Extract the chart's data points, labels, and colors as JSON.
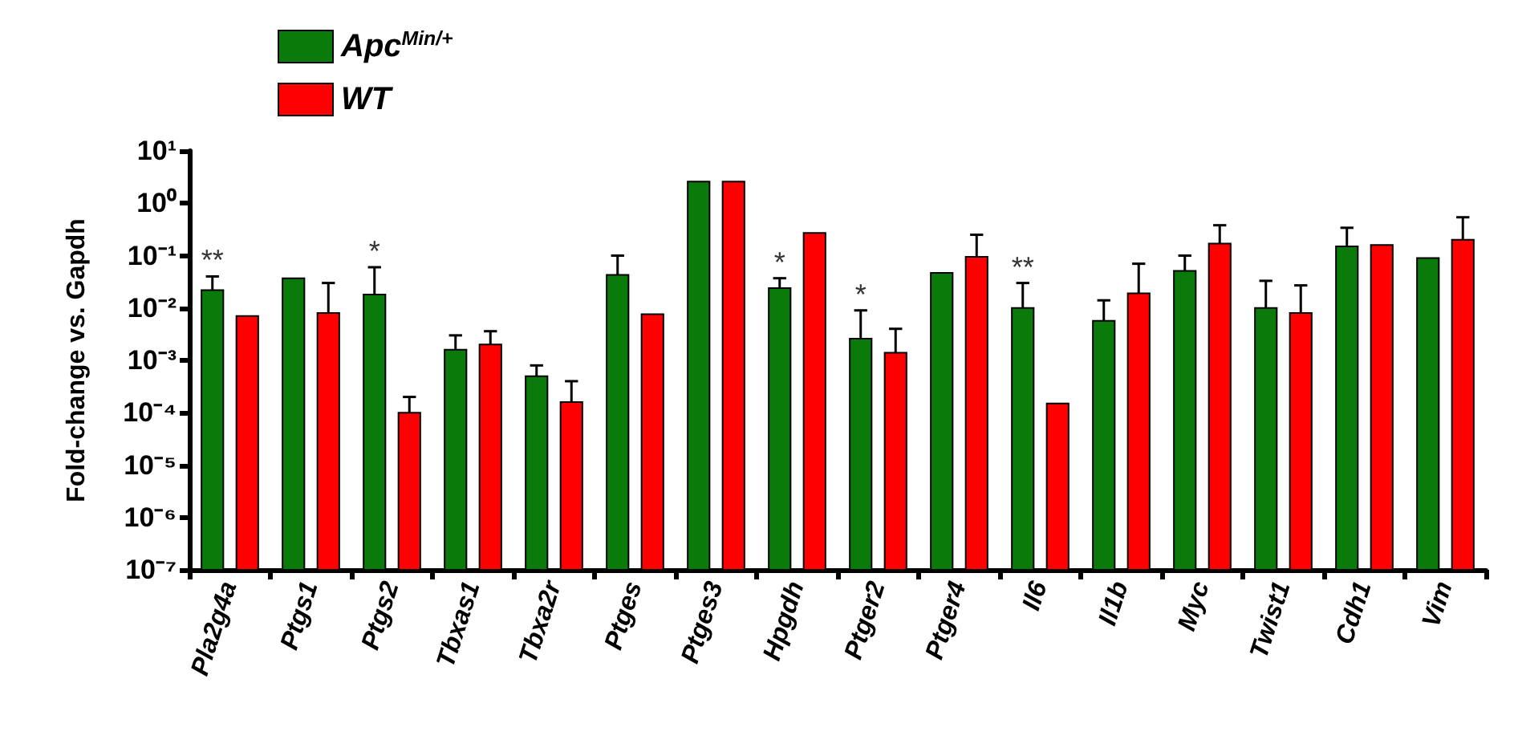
{
  "chart_data": {
    "type": "bar",
    "ylabel": "Fold-change vs. Gapdh",
    "categories": [
      "Pla2g4a",
      "Ptgs1",
      "Ptgs2",
      "Tbxas1",
      "Tbxa2r",
      "Ptges",
      "Ptges3",
      "Hpgdh",
      "Ptger2",
      "Ptger4",
      "Il6",
      "Il1b",
      "Myc",
      "Twist1",
      "Cdh1",
      "Vim"
    ],
    "series": [
      {
        "name": "Apc$^{Min/+}$",
        "color": "#0a7a0a",
        "values": [
          0.022,
          0.037,
          0.018,
          0.0016,
          0.0005,
          0.043,
          2.6,
          0.024,
          0.0026,
          0.047,
          0.01,
          0.0057,
          0.051,
          0.01,
          0.15,
          0.09
        ],
        "value_labels": [
          "**",
          null,
          "*",
          null,
          null,
          null,
          null,
          "*",
          "*",
          null,
          "**",
          null,
          null,
          null,
          null,
          null
        ],
        "errors": [
          [
            0.022,
            0.04
          ],
          null,
          [
            0.018,
            0.06
          ],
          [
            0.0016,
            0.003
          ],
          [
            0.0005,
            0.0008
          ],
          [
            0.043,
            0.1
          ],
          null,
          [
            0.024,
            0.037
          ],
          [
            0.0026,
            0.009
          ],
          null,
          [
            0.01,
            0.03
          ],
          [
            0.0057,
            0.014
          ],
          [
            0.051,
            0.1
          ],
          [
            0.01,
            0.033
          ],
          [
            0.15,
            0.34
          ],
          null
        ]
      },
      {
        "name": "WT",
        "color": "#ff0000",
        "values": [
          0.007,
          0.008,
          0.0001,
          0.002,
          0.00016,
          0.0076,
          2.6,
          0.27,
          0.0014,
          0.095,
          0.00015,
          0.019,
          0.17,
          0.008,
          0.16,
          0.2
        ],
        "errors": [
          null,
          [
            0.008,
            0.03
          ],
          [
            0.0001,
            0.0002
          ],
          [
            0.002,
            0.0036
          ],
          [
            0.00016,
            0.0004
          ],
          null,
          null,
          null,
          [
            0.0014,
            0.004
          ],
          [
            0.095,
            0.25
          ],
          null,
          [
            0.019,
            0.07
          ],
          [
            0.17,
            0.38
          ],
          [
            0.008,
            0.027
          ],
          null,
          [
            0.2,
            0.54
          ]
        ]
      }
    ],
    "log": true,
    "ylim": [
      1e-07,
      10
    ],
    "yticks": [
      {
        "value": 1e-07,
        "label": "10⁻⁷"
      },
      {
        "value": 1e-06,
        "label": "10⁻⁶"
      },
      {
        "value": 1e-05,
        "label": "10⁻⁵"
      },
      {
        "value": 0.0001,
        "label": "10⁻⁴"
      },
      {
        "value": 0.001,
        "label": "10⁻³"
      },
      {
        "value": 0.01,
        "label": "10⁻²"
      },
      {
        "value": 0.1,
        "label": "10⁻¹"
      },
      {
        "value": 1,
        "label": "10⁰"
      },
      {
        "value": 10,
        "label": "10¹"
      }
    ],
    "legend": "top left",
    "grid": false
  }
}
